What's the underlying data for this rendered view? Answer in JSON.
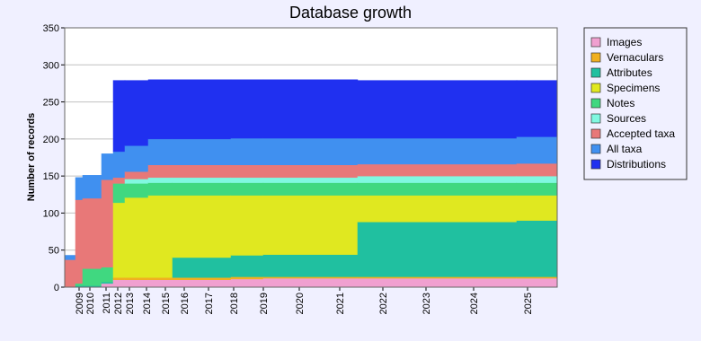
{
  "chart_data": {
    "type": "stacked-step-area",
    "title": "Database growth",
    "y_label": "Number of records",
    "x": [
      0,
      12,
      20,
      41,
      54,
      67,
      93,
      120,
      185,
      221,
      326,
      503
    ],
    "xlim": [
      0,
      548
    ],
    "xticks": [
      {
        "value": 16,
        "label": "2009"
      },
      {
        "value": 28,
        "label": "2010"
      },
      {
        "value": 46,
        "label": "2011"
      },
      {
        "value": 59,
        "label": "2012"
      },
      {
        "value": 72,
        "label": "2013"
      },
      {
        "value": 91,
        "label": "2014"
      },
      {
        "value": 112,
        "label": "2015"
      },
      {
        "value": 133,
        "label": "2016"
      },
      {
        "value": 160,
        "label": "2017"
      },
      {
        "value": 188,
        "label": "2018"
      },
      {
        "value": 221,
        "label": "2019"
      },
      {
        "value": 261,
        "label": "2020"
      },
      {
        "value": 306,
        "label": "2021"
      },
      {
        "value": 354,
        "label": "2022"
      },
      {
        "value": 402,
        "label": "2023"
      },
      {
        "value": 455,
        "label": "2024"
      },
      {
        "value": 515,
        "label": "2025"
      }
    ],
    "ylim": [
      0,
      350
    ],
    "yticks": [
      0,
      50,
      100,
      150,
      200,
      250,
      300,
      350
    ],
    "grid": true,
    "series": [
      {
        "name": "Images",
        "color": "#f0a0d0",
        "values": [
          0,
          0,
          0,
          5,
          10,
          10,
          10,
          10,
          11,
          12,
          12,
          12
        ]
      },
      {
        "name": "Vernaculars",
        "color": "#f0b020",
        "values": [
          0,
          0,
          0,
          0,
          3,
          3,
          3,
          3,
          3,
          2,
          2,
          2
        ]
      },
      {
        "name": "Attributes",
        "color": "#20c0a0",
        "values": [
          0,
          2,
          2,
          2,
          0,
          0,
          0,
          27,
          29,
          30,
          74,
          76
        ]
      },
      {
        "name": "Specimens",
        "color": "#e0e820",
        "values": [
          0,
          0,
          0,
          0,
          101,
          108,
          111,
          84,
          81,
          80,
          36,
          34
        ]
      },
      {
        "name": "Notes",
        "color": "#40d880",
        "values": [
          0,
          3,
          23,
          20,
          26,
          19,
          17,
          17,
          17,
          17,
          17,
          17
        ]
      },
      {
        "name": "Sources",
        "color": "#80f8e0",
        "values": [
          0,
          0,
          0,
          0,
          0,
          6,
          7,
          7,
          7,
          7,
          9,
          9
        ]
      },
      {
        "name": "Accepted taxa",
        "color": "#e87878",
        "values": [
          37,
          113,
          95,
          118,
          8,
          10,
          17,
          17,
          17,
          17,
          16,
          17
        ]
      },
      {
        "name": "All taxa",
        "color": "#4090f0",
        "values": [
          6,
          30,
          31,
          35,
          35,
          35,
          35,
          35,
          36,
          36,
          35,
          36
        ]
      },
      {
        "name": "Distributions",
        "color": "#2030f0",
        "values": [
          0,
          0,
          0,
          0,
          96,
          88,
          80,
          80,
          79,
          79,
          78,
          76
        ]
      }
    ]
  }
}
